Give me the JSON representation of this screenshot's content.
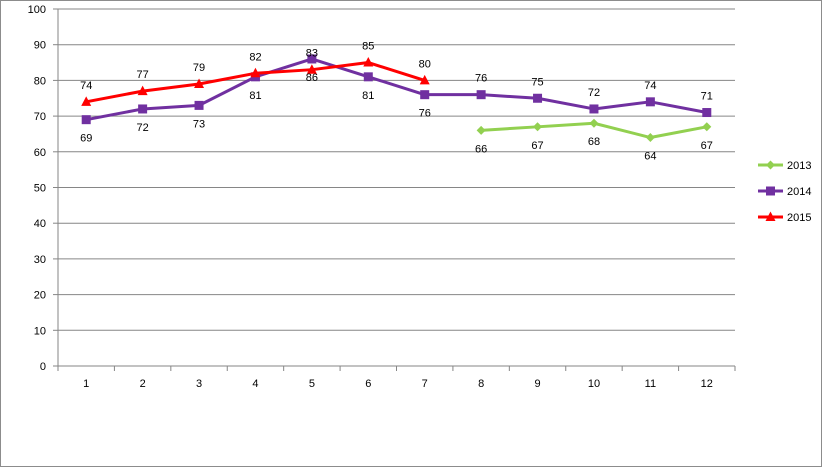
{
  "chart_data": {
    "type": "line",
    "title": "",
    "xlabel": "",
    "ylabel": "",
    "categories": [
      "1",
      "2",
      "3",
      "4",
      "5",
      "6",
      "7",
      "8",
      "9",
      "10",
      "11",
      "12"
    ],
    "ylim": [
      0,
      100
    ],
    "yticks": [
      "0",
      "10",
      "20",
      "30",
      "40",
      "50",
      "60",
      "70",
      "80",
      "90",
      "100"
    ],
    "grid": "horizontal",
    "legend_position": "right",
    "series": [
      {
        "name": "2013",
        "color": "#92d050",
        "marker": "diamond",
        "values": [
          null,
          null,
          null,
          null,
          null,
          null,
          null,
          66,
          67,
          68,
          64,
          67
        ],
        "labels": [
          "",
          "",
          "",
          "",
          "",
          "",
          "",
          "66",
          "67",
          "68",
          "64",
          "67"
        ],
        "label_position": "below"
      },
      {
        "name": "2014",
        "color": "#7030a0",
        "marker": "square",
        "values": [
          69,
          72,
          73,
          81,
          86,
          81,
          76,
          76,
          75,
          72,
          74,
          71
        ],
        "labels": [
          "69",
          "72",
          "73",
          "81",
          "86",
          "81",
          "76",
          "76",
          "75",
          "72",
          "74",
          "71"
        ],
        "label_position": "mixed"
      },
      {
        "name": "2015",
        "color": "#ff0000",
        "marker": "triangle",
        "values": [
          74,
          77,
          79,
          82,
          83,
          85,
          80,
          null,
          null,
          null,
          null,
          null
        ],
        "labels": [
          "74",
          "77",
          "79",
          "82",
          "83",
          "85",
          "80",
          "",
          "",
          "",
          "",
          ""
        ],
        "label_position": "above"
      }
    ]
  }
}
